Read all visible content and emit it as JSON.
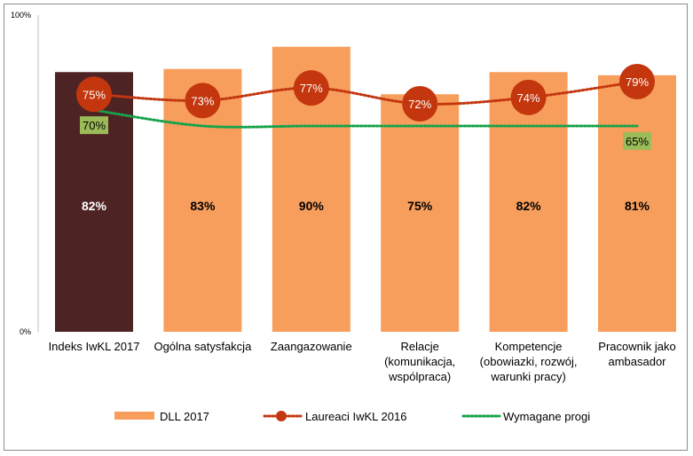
{
  "chart_data": {
    "type": "bar",
    "y_tick_labels": [
      "100%",
      "0%"
    ],
    "ylim": [
      0,
      100
    ],
    "categories": [
      [
        "Indeks IwKL 2017"
      ],
      [
        "Ogólna satysfakcja"
      ],
      [
        "Zaangazowanie"
      ],
      [
        "Relacje",
        "(komunikacja,",
        "wspólpraca)"
      ],
      [
        "Kompetencje",
        "(obowiazki, rozwój,",
        "warunki pracy)"
      ],
      [
        "Pracownik jako",
        "ambasador"
      ]
    ],
    "series": [
      {
        "name": "DLL 2017",
        "kind": "bar",
        "values": [
          82,
          83,
          90,
          75,
          82,
          81
        ],
        "labels": [
          "82%",
          "83%",
          "90%",
          "75%",
          "82%",
          "81%"
        ],
        "color": "#F79E5C",
        "highlight_color": "#4E2323",
        "highlight_index": 0
      },
      {
        "name": "Laureaci IwKL 2016",
        "kind": "line",
        "values": [
          75,
          73,
          77,
          72,
          74,
          79
        ],
        "labels": [
          "75%",
          "73%",
          "77%",
          "72%",
          "74%",
          "79%"
        ],
        "color": "#C3360E"
      },
      {
        "name": "Wymagane progi",
        "kind": "line",
        "values": [
          70,
          65,
          65,
          65,
          65,
          65
        ],
        "labels": [
          "70%",
          "",
          "",
          "",
          "",
          "65%"
        ],
        "color": "#17A24A",
        "label_box_color": "#9BBB59"
      }
    ],
    "legend_position": "bottom",
    "grid": false
  }
}
